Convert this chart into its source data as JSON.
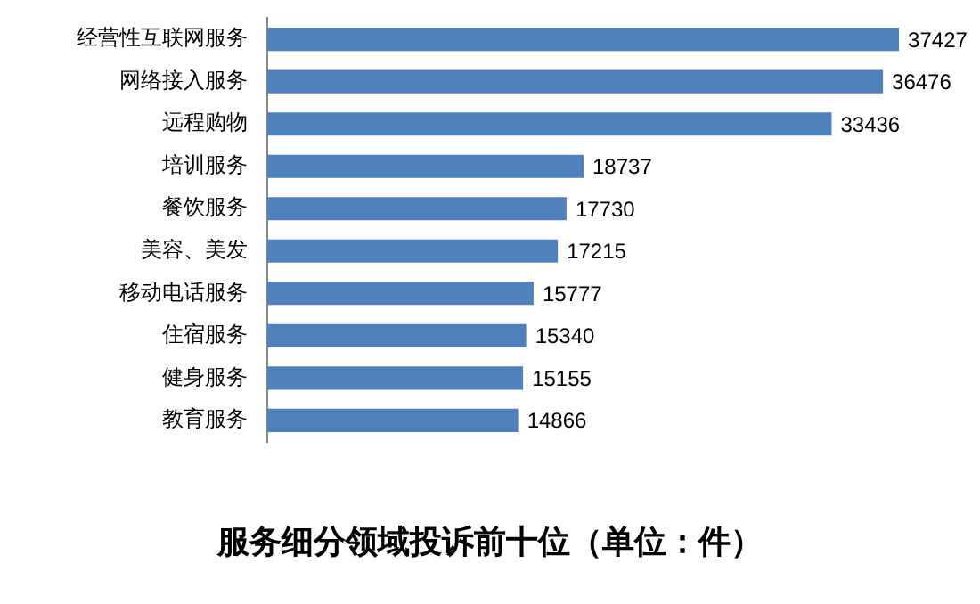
{
  "chart_data": {
    "type": "bar",
    "orientation": "horizontal",
    "title": "服务细分领域投诉前十位（单位：件）",
    "categories": [
      "经营性互联网服务",
      "网络接入服务",
      "远程购物",
      "培训服务",
      "餐饮服务",
      "美容、美发",
      "移动电话服务",
      "住宿服务",
      "健身服务",
      "教育服务"
    ],
    "values": [
      37427,
      36476,
      33436,
      18737,
      17730,
      17215,
      15777,
      15340,
      15155,
      14866
    ],
    "color": "#4f81bd",
    "data_labels": true,
    "legend": false
  }
}
